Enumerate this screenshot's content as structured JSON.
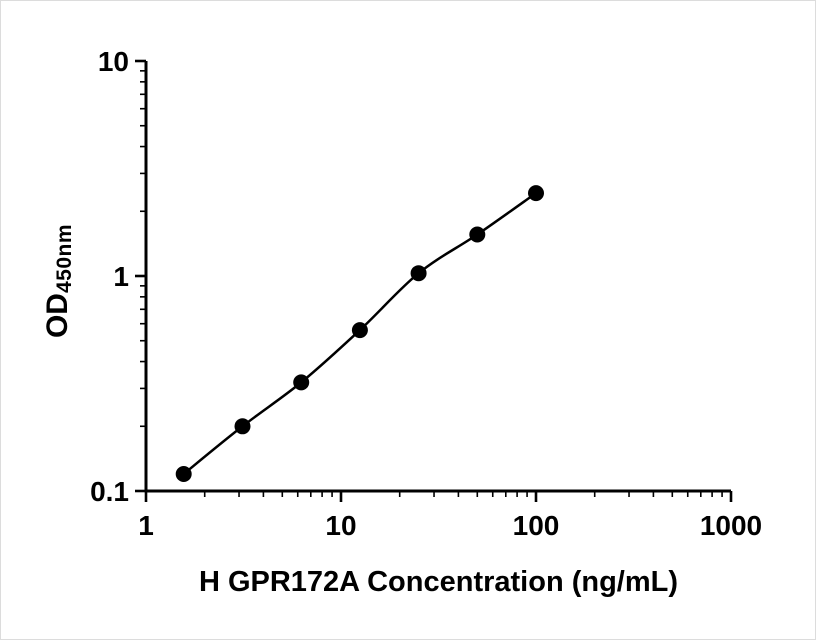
{
  "figure": {
    "background": "#ffffff",
    "accent_color": "#000000"
  },
  "chart_data": {
    "type": "scatter",
    "title": "",
    "xlabel": "H GPR172A Concentration (ng/mL)",
    "ylabel_main": "OD",
    "ylabel_sub": "450nm",
    "x_scale": "log10",
    "y_scale": "log10",
    "xlim": [
      1,
      1000
    ],
    "ylim": [
      0.1,
      10
    ],
    "x_ticks": [
      1,
      10,
      100,
      1000
    ],
    "x_tick_labels": [
      "1",
      "10",
      "100",
      "1000"
    ],
    "y_ticks": [
      0.1,
      1,
      10
    ],
    "y_tick_labels": [
      "0.1",
      "1",
      "10"
    ],
    "grid": false,
    "legend": "none",
    "minor_ticks": "log",
    "series": [
      {
        "x": [
          1.56,
          3.125,
          6.25,
          12.5,
          25,
          50,
          100
        ],
        "y": [
          0.12,
          0.2,
          0.32,
          0.56,
          1.03,
          1.56,
          2.43
        ],
        "marker": "circle",
        "marker_color": "#000000",
        "line": "smooth",
        "color": "#000000"
      }
    ]
  }
}
